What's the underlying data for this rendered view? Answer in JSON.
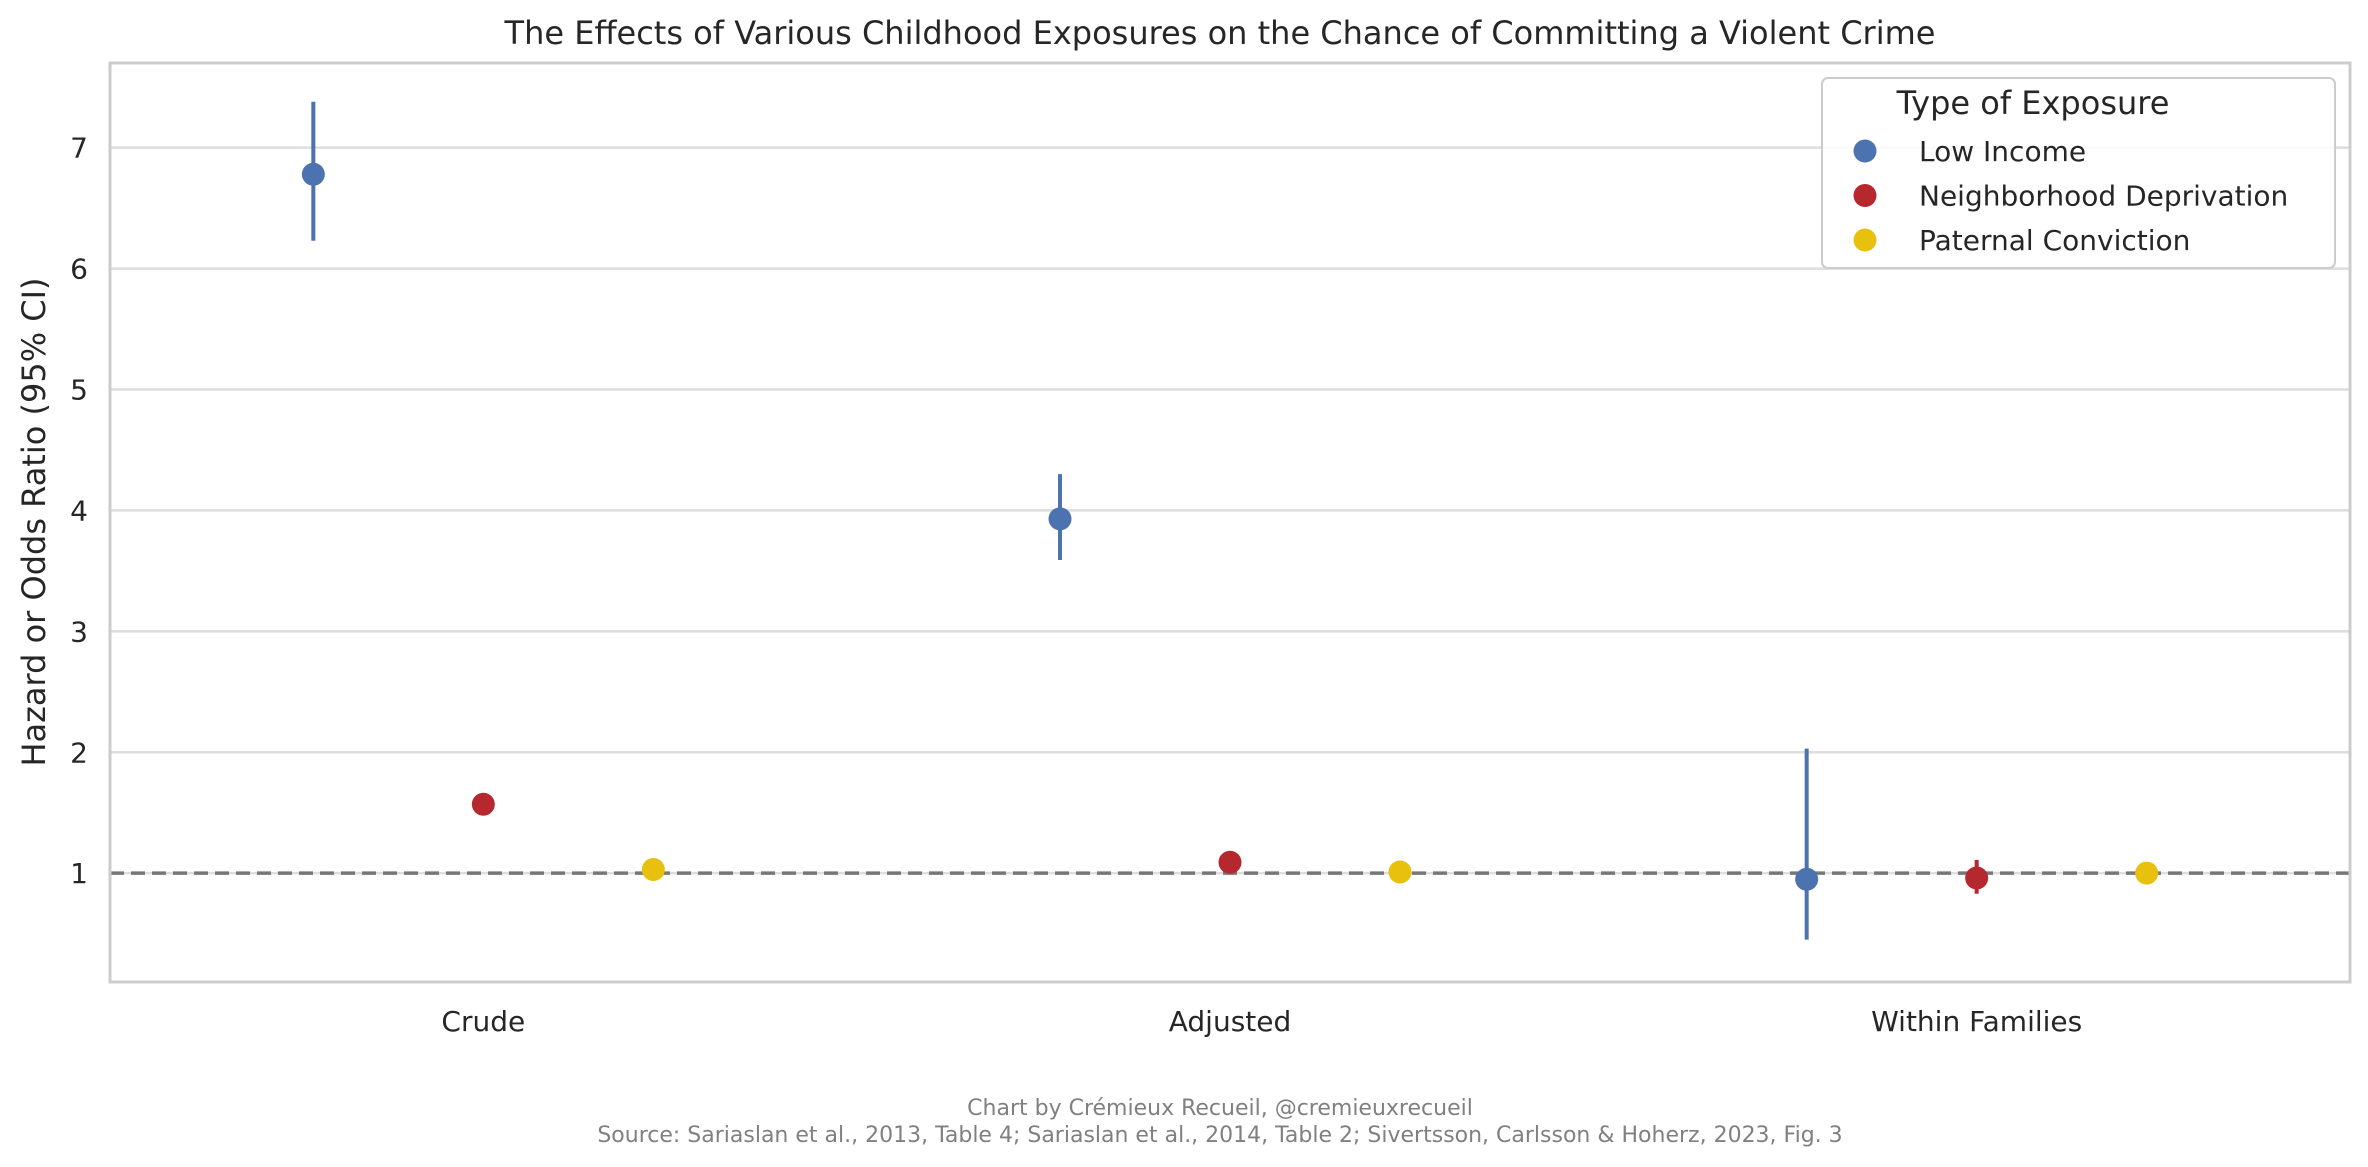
{
  "chart_data": {
    "type": "scatter",
    "title": "The Effects of Various Childhood Exposures on the Chance of Committing a Violent Crime",
    "xlabel": "",
    "ylabel": "Hazard or Odds Ratio (95% CI)",
    "categories": [
      "Crude",
      "Adjusted",
      "Within Families"
    ],
    "ylim": [
      0.1,
      7.7
    ],
    "yticks": [
      1,
      2,
      3,
      4,
      5,
      6,
      7
    ],
    "grid": true,
    "reference_line": 1,
    "legend": {
      "title": "Type of Exposure",
      "placement": "top-right"
    },
    "series": [
      {
        "name": "Low Income",
        "color": "#4c72b0",
        "values": [
          6.78,
          3.93,
          0.95
        ],
        "ci": [
          [
            6.23,
            7.38
          ],
          [
            3.59,
            4.3
          ],
          [
            0.45,
            2.03
          ]
        ]
      },
      {
        "name": "Neighborhood Deprivation",
        "color": "#b5282e",
        "values": [
          1.57,
          1.09,
          0.96
        ],
        "ci": [
          null,
          null,
          [
            0.83,
            1.11
          ]
        ]
      },
      {
        "name": "Paternal Conviction",
        "color": "#e8c10f",
        "values": [
          1.03,
          1.01,
          1.0
        ],
        "ci": [
          null,
          null,
          null
        ]
      }
    ]
  },
  "credits": {
    "line1": "Chart by Crémieux Recueil, @cremieuxrecueil",
    "line2": "Source: Sariaslan et al., 2013, Table 4; Sariaslan et al., 2014, Table 2; Sivertsson, Carlsson & Hoherz, 2023, Fig. 3"
  }
}
